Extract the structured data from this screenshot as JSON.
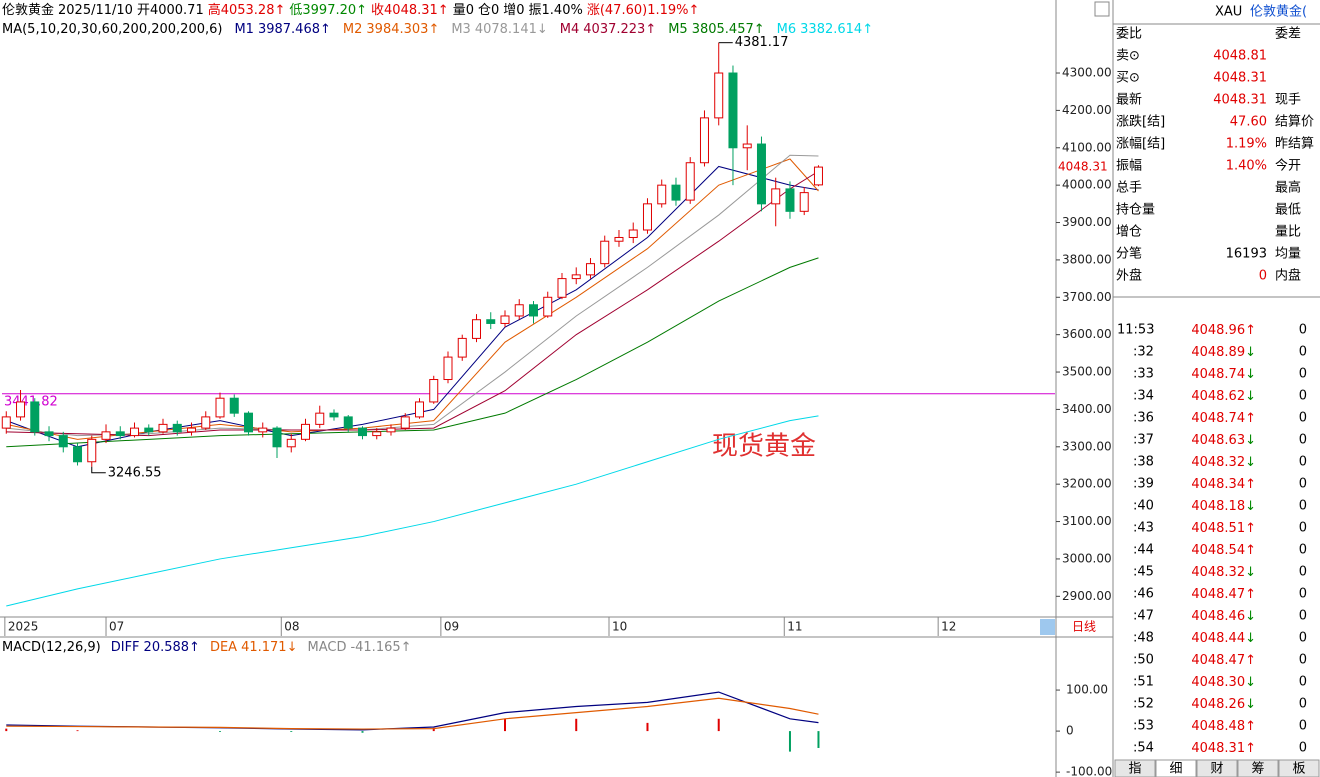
{
  "header": {
    "segments": [
      {
        "text": "伦敦黄金",
        "color": "#000"
      },
      {
        "text": "2025/11/10",
        "color": "#000"
      },
      {
        "text": "开4000.71",
        "color": "#000"
      },
      {
        "text": "高4053.28↑",
        "color": "#e00000"
      },
      {
        "text": "低3997.20↑",
        "color": "#008800"
      },
      {
        "text": "收4048.31↑",
        "color": "#e00000"
      },
      {
        "text": "量0",
        "color": "#000"
      },
      {
        "text": "仓0",
        "color": "#000"
      },
      {
        "text": "增0",
        "color": "#000"
      },
      {
        "text": "振1.40%",
        "color": "#000"
      },
      {
        "text": "涨(47.60)1.19%↑",
        "color": "#e00000"
      }
    ],
    "ma_title": "MA(5,10,20,30,60,200,200,200,6)",
    "macd_title": "MACD(12,26,9)",
    "period": "日线",
    "watermark_label": "现货黄金"
  },
  "chart_data": {
    "type": "candlestick",
    "candles": [
      [
        3350,
        3395,
        3335,
        3380
      ],
      [
        3380,
        3452,
        3370,
        3420
      ],
      [
        3420,
        3430,
        3330,
        3340
      ],
      [
        3340,
        3355,
        3315,
        3330
      ],
      [
        3330,
        3340,
        3285,
        3300
      ],
      [
        3300,
        3310,
        3250,
        3260
      ],
      [
        3260,
        3330,
        3246.55,
        3320
      ],
      [
        3320,
        3360,
        3310,
        3340
      ],
      [
        3340,
        3355,
        3320,
        3330
      ],
      [
        3330,
        3365,
        3325,
        3350
      ],
      [
        3350,
        3360,
        3330,
        3340
      ],
      [
        3340,
        3375,
        3335,
        3360
      ],
      [
        3360,
        3370,
        3330,
        3340
      ],
      [
        3340,
        3365,
        3330,
        3350
      ],
      [
        3350,
        3395,
        3345,
        3380
      ],
      [
        3380,
        3445,
        3375,
        3430
      ],
      [
        3430,
        3440,
        3380,
        3390
      ],
      [
        3390,
        3395,
        3330,
        3340
      ],
      [
        3340,
        3365,
        3325,
        3350
      ],
      [
        3350,
        3355,
        3270,
        3300
      ],
      [
        3300,
        3335,
        3285,
        3320
      ],
      [
        3320,
        3375,
        3315,
        3360
      ],
      [
        3360,
        3410,
        3350,
        3390
      ],
      [
        3390,
        3400,
        3370,
        3380
      ],
      [
        3380,
        3385,
        3340,
        3350
      ],
      [
        3350,
        3355,
        3320,
        3330
      ],
      [
        3330,
        3350,
        3320,
        3340
      ],
      [
        3340,
        3360,
        3330,
        3350
      ],
      [
        3350,
        3390,
        3345,
        3380
      ],
      [
        3380,
        3430,
        3375,
        3420
      ],
      [
        3420,
        3490,
        3415,
        3480
      ],
      [
        3480,
        3555,
        3470,
        3540
      ],
      [
        3540,
        3600,
        3530,
        3590
      ],
      [
        3590,
        3655,
        3580,
        3640
      ],
      [
        3640,
        3660,
        3615,
        3630
      ],
      [
        3630,
        3665,
        3620,
        3650
      ],
      [
        3650,
        3695,
        3640,
        3680
      ],
      [
        3680,
        3690,
        3630,
        3650
      ],
      [
        3650,
        3715,
        3645,
        3700
      ],
      [
        3700,
        3765,
        3695,
        3750
      ],
      [
        3750,
        3780,
        3735,
        3760
      ],
      [
        3760,
        3805,
        3750,
        3790
      ],
      [
        3790,
        3865,
        3780,
        3850
      ],
      [
        3850,
        3880,
        3835,
        3860
      ],
      [
        3860,
        3900,
        3845,
        3880
      ],
      [
        3880,
        3965,
        3870,
        3950
      ],
      [
        3950,
        4015,
        3940,
        4000
      ],
      [
        4000,
        4020,
        3945,
        3960
      ],
      [
        3960,
        4075,
        3950,
        4060
      ],
      [
        4060,
        4200,
        4050,
        4180
      ],
      [
        4180,
        4381.17,
        4160,
        4300
      ],
      [
        4300,
        4320,
        4000,
        4100
      ],
      [
        4100,
        4160,
        4040,
        4110
      ],
      [
        4110,
        4130,
        3930,
        3950
      ],
      [
        3950,
        4020,
        3890,
        3990
      ],
      [
        3990,
        4010,
        3910,
        3930
      ],
      [
        3930,
        3995,
        3920,
        3980
      ],
      [
        4000.71,
        4053.28,
        3997.2,
        4048.31
      ]
    ],
    "up_color": "#e00000",
    "down_color": "#00a060",
    "ma_x": [
      0,
      5,
      10,
      15,
      20,
      25,
      30,
      35,
      40,
      45,
      50,
      55,
      57
    ],
    "series": [
      {
        "name": "M1",
        "trend": "↑",
        "color": "#000080",
        "values": [
          3370,
          3300,
          3340,
          3370,
          3330,
          3360,
          3400,
          3620,
          3720,
          3860,
          4050,
          4000,
          3987.468
        ]
      },
      {
        "name": "M2",
        "trend": "↑",
        "color": "#e05a00",
        "values": [
          3360,
          3320,
          3340,
          3360,
          3340,
          3350,
          3370,
          3580,
          3700,
          3830,
          4000,
          4070,
          3984.303
        ]
      },
      {
        "name": "M3",
        "trend": "↓",
        "color": "#999999",
        "values": [
          3350,
          3330,
          3335,
          3350,
          3345,
          3345,
          3360,
          3500,
          3650,
          3780,
          3920,
          4080,
          4078.141
        ]
      },
      {
        "name": "M4",
        "trend": "↑",
        "color": "#a00030",
        "values": [
          3340,
          3335,
          3330,
          3345,
          3345,
          3345,
          3350,
          3450,
          3600,
          3720,
          3850,
          3990,
          4037.223
        ]
      },
      {
        "name": "M5",
        "trend": "↑",
        "color": "#007a00",
        "values": [
          3300,
          3310,
          3320,
          3330,
          3335,
          3340,
          3345,
          3390,
          3480,
          3580,
          3690,
          3780,
          3805.457
        ]
      },
      {
        "name": "M6",
        "trend": "↑",
        "color": "#00d8e8",
        "values": [
          2874,
          2920,
          2960,
          3000,
          3030,
          3060,
          3100,
          3150,
          3200,
          3260,
          3320,
          3370,
          3382.614
        ]
      }
    ],
    "xlim": [
      -0.3,
      73.6
    ],
    "ylim": [
      2850,
      4490
    ],
    "yticks": [
      {
        "value": 4300,
        "label": "4300.00"
      },
      {
        "value": 4200,
        "label": "4200.00"
      },
      {
        "value": 4100,
        "label": "4100.00"
      },
      {
        "value": 4000,
        "label": "4000.00"
      },
      {
        "value": 3900,
        "label": "3900.00"
      },
      {
        "value": 3800,
        "label": "3800.00"
      },
      {
        "value": 3700,
        "label": "3700.00"
      },
      {
        "value": 3600,
        "label": "3600.00"
      },
      {
        "value": 3500,
        "label": "3500.00"
      },
      {
        "value": 3400,
        "label": "3400.00"
      },
      {
        "value": 3300,
        "label": "3300.00"
      },
      {
        "value": 3200,
        "label": "3200.00"
      },
      {
        "value": 3100,
        "label": "3100.00"
      },
      {
        "value": 3000,
        "label": "3000.00"
      },
      {
        "value": 2900,
        "label": "2900.00"
      }
    ],
    "x_labels": [
      {
        "index": -0.1,
        "label": "2025"
      },
      {
        "index": 7,
        "label": "07"
      },
      {
        "index": 19.3,
        "label": "08"
      },
      {
        "index": 30.5,
        "label": "09"
      },
      {
        "index": 42.3,
        "label": "10"
      },
      {
        "index": 54.6,
        "label": "11"
      },
      {
        "index": 65.4,
        "label": "12"
      }
    ],
    "high_mark": {
      "index": 50,
      "value": 4381.17
    },
    "low_mark": {
      "index": 6,
      "value": 3246.55
    },
    "level_line": {
      "value": 3441.82,
      "color": "#d000d0"
    },
    "macd": {
      "ylim": [
        -107,
        222
      ],
      "yticks": [
        {
          "value": 100,
          "label": "100.00"
        },
        0,
        {
          "value": -100,
          "label": "-100.00"
        }
      ],
      "series": [
        {
          "name": "DIFF",
          "trend": "↑",
          "color": "#000080",
          "values": [
            15,
            12,
            10,
            8,
            5,
            3,
            10,
            45,
            60,
            70,
            95,
            30,
            20.588
          ]
        },
        {
          "name": "DEA",
          "trend": "↓",
          "color": "#e05a00",
          "values": [
            12,
            11,
            10,
            9,
            6,
            5,
            6,
            30,
            45,
            60,
            80,
            55,
            41.171
          ]
        }
      ],
      "histogram": {
        "name": "MACD",
        "trend": "↑",
        "values": [
          6,
          2,
          0,
          -2,
          -2,
          -4,
          8,
          30,
          30,
          20,
          30,
          -50,
          -41.165
        ]
      }
    }
  },
  "quote_panel": {
    "symbol": "XAU",
    "name": "伦敦黄金(",
    "rows": [
      {
        "label": "委比",
        "right": "委差"
      },
      {
        "label": "卖⊙",
        "value": "4048.81"
      },
      {
        "label": "买⊙",
        "value": "4048.31"
      },
      {
        "label": "最新",
        "value": "4048.31",
        "right": "现手"
      },
      {
        "label": "涨跌[结]",
        "value": "47.60",
        "right": "结算价"
      },
      {
        "label": "涨幅[结]",
        "value": "1.19%",
        "right": "昨结算"
      },
      {
        "label": "振幅",
        "value": "1.40%",
        "right": "今开"
      },
      {
        "label": "总手",
        "right": "最高"
      },
      {
        "label": "持仓量",
        "right": "最低"
      },
      {
        "label": "增仓",
        "right": "量比"
      },
      {
        "label": "分笔",
        "value": "16193",
        "right": "均量"
      },
      {
        "label": "外盘",
        "value": "0",
        "right": "内盘"
      }
    ]
  },
  "tick_list": [
    {
      "time": "11:53",
      "price": "4048.96",
      "dir": "↑",
      "vol": 0
    },
    {
      "time": ":32",
      "price": "4048.89",
      "dir": "↓",
      "vol": 0
    },
    {
      "time": ":33",
      "price": "4048.74",
      "dir": "↓",
      "vol": 0
    },
    {
      "time": ":34",
      "price": "4048.62",
      "dir": "↓",
      "vol": 0
    },
    {
      "time": ":36",
      "price": "4048.74",
      "dir": "↑",
      "vol": 0
    },
    {
      "time": ":37",
      "price": "4048.63",
      "dir": "↓",
      "vol": 0
    },
    {
      "time": ":38",
      "price": "4048.32",
      "dir": "↓",
      "vol": 0
    },
    {
      "time": ":39",
      "price": "4048.34",
      "dir": "↑",
      "vol": 0
    },
    {
      "time": ":40",
      "price": "4048.18",
      "dir": "↓",
      "vol": 0
    },
    {
      "time": ":43",
      "price": "4048.51",
      "dir": "↑",
      "vol": 0
    },
    {
      "time": ":44",
      "price": "4048.54",
      "dir": "↑",
      "vol": 0
    },
    {
      "time": ":45",
      "price": "4048.32",
      "dir": "↓",
      "vol": 0
    },
    {
      "time": ":46",
      "price": "4048.47",
      "dir": "↑",
      "vol": 0
    },
    {
      "time": ":47",
      "price": "4048.46",
      "dir": "↓",
      "vol": 0
    },
    {
      "time": ":48",
      "price": "4048.44",
      "dir": "↓",
      "vol": 0
    },
    {
      "time": ":50",
      "price": "4048.47",
      "dir": "↑",
      "vol": 0
    },
    {
      "time": ":51",
      "price": "4048.30",
      "dir": "↓",
      "vol": 0
    },
    {
      "time": ":52",
      "price": "4048.26",
      "dir": "↓",
      "vol": 0
    },
    {
      "time": ":53",
      "price": "4048.48",
      "dir": "↑",
      "vol": 0
    },
    {
      "time": ":54",
      "price": "4048.31",
      "dir": "↑",
      "vol": 0
    }
  ],
  "tabs": [
    "指",
    "细",
    "财",
    "筹",
    "板"
  ]
}
